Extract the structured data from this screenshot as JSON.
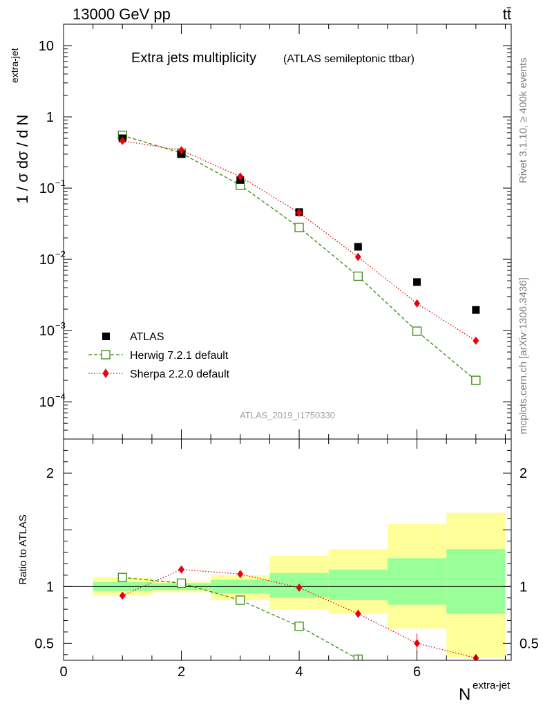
{
  "header": {
    "beam_label": "13000 GeV pp",
    "process_label": "tt̄"
  },
  "side_labels": {
    "rivet": "Rivet 3.1.10, ≥ 400k events",
    "mcplots": "mcplots.cern.ch [arXiv:1306.3436]"
  },
  "colors": {
    "data": "#000000",
    "herwig": "#3a8a0a",
    "sherpa": "#e8000b",
    "band_inner": "#99ff99",
    "band_outer": "#ffff99",
    "axis": "#000000",
    "watermark": "#a0a0a0"
  },
  "chart_data": [
    {
      "type": "scatter",
      "panel": "main",
      "title": "Extra jets multiplicity",
      "subtitle": "(ATLAS semileptonic ttbar)",
      "watermark": "ATLAS_2019_I1750330",
      "ylabel": "1 / σ dσ / d N",
      "ylabel_sup": "extra-jet",
      "yscale": "log",
      "ylim": [
        3e-05,
        20
      ],
      "xlim": [
        0,
        7.6
      ],
      "ytick_labels": [
        {
          "value": 10,
          "base": "10",
          "exp": ""
        },
        {
          "value": 1,
          "base": "1",
          "exp": ""
        },
        {
          "value": 0.1,
          "base": "10",
          "exp": "−1"
        },
        {
          "value": 0.01,
          "base": "10",
          "exp": "−2"
        },
        {
          "value": 0.001,
          "base": "10",
          "exp": "−3"
        },
        {
          "value": 0.0001,
          "base": "10",
          "exp": "−4"
        }
      ],
      "legend": {
        "position": "lower-left",
        "entries": [
          "ATLAS",
          "Herwig 7.2.1 default",
          "Sherpa 2.2.0 default"
        ]
      },
      "series": [
        {
          "name": "ATLAS",
          "x": [
            1,
            2,
            3,
            4,
            5,
            6,
            7
          ],
          "values": [
            0.5,
            0.3,
            0.13,
            0.046,
            0.015,
            0.0048,
            0.00195
          ]
        },
        {
          "name": "Herwig 7.2.1 default",
          "x": [
            1,
            2,
            3,
            4,
            5,
            6,
            7
          ],
          "values": [
            0.55,
            0.31,
            0.11,
            0.028,
            0.0058,
            0.00098,
            0.0002
          ]
        },
        {
          "name": "Sherpa 2.2.0 default",
          "x": [
            1,
            2,
            3,
            4,
            5,
            6,
            7
          ],
          "values": [
            0.46,
            0.34,
            0.145,
            0.045,
            0.0108,
            0.0024,
            0.00072
          ]
        }
      ]
    },
    {
      "type": "scatter",
      "panel": "ratio",
      "ylabel": "Ratio to ATLAS",
      "xlabel": "N",
      "xlabel_sup": "extra-jet",
      "ylim": [
        0.35,
        2.3
      ],
      "xlim": [
        0,
        7.6
      ],
      "xticks": [
        0,
        2,
        4,
        6
      ],
      "yticks": [
        0.5,
        1,
        2
      ],
      "bands": [
        {
          "x0": 0.5,
          "x1": 1.5,
          "inner": [
            0.96,
            1.04
          ],
          "outer": [
            0.92,
            1.08
          ]
        },
        {
          "x0": 1.5,
          "x1": 2.5,
          "inner": [
            0.97,
            1.03
          ],
          "outer": [
            0.95,
            1.05
          ]
        },
        {
          "x0": 2.5,
          "x1": 3.5,
          "inner": [
            0.94,
            1.06
          ],
          "outer": [
            0.88,
            1.1
          ]
        },
        {
          "x0": 3.5,
          "x1": 4.5,
          "inner": [
            0.9,
            1.12
          ],
          "outer": [
            0.8,
            1.27
          ]
        },
        {
          "x0": 4.5,
          "x1": 5.5,
          "inner": [
            0.88,
            1.15
          ],
          "outer": [
            0.76,
            1.33
          ]
        },
        {
          "x0": 5.5,
          "x1": 6.5,
          "inner": [
            0.84,
            1.25
          ],
          "outer": [
            0.63,
            1.55
          ]
        },
        {
          "x0": 6.5,
          "x1": 7.5,
          "inner": [
            0.76,
            1.33
          ],
          "outer": [
            0.38,
            1.65
          ]
        }
      ],
      "series": [
        {
          "name": "Herwig 7.2.1 default",
          "x": [
            1,
            2,
            3,
            4,
            5
          ],
          "values": [
            1.08,
            1.03,
            0.88,
            0.65,
            0.36
          ]
        },
        {
          "name": "Sherpa 2.2.0 default",
          "x": [
            1,
            2,
            3,
            4,
            5,
            6,
            7
          ],
          "values": [
            0.92,
            1.15,
            1.11,
            0.99,
            0.76,
            0.5,
            0.37
          ]
        }
      ]
    }
  ]
}
